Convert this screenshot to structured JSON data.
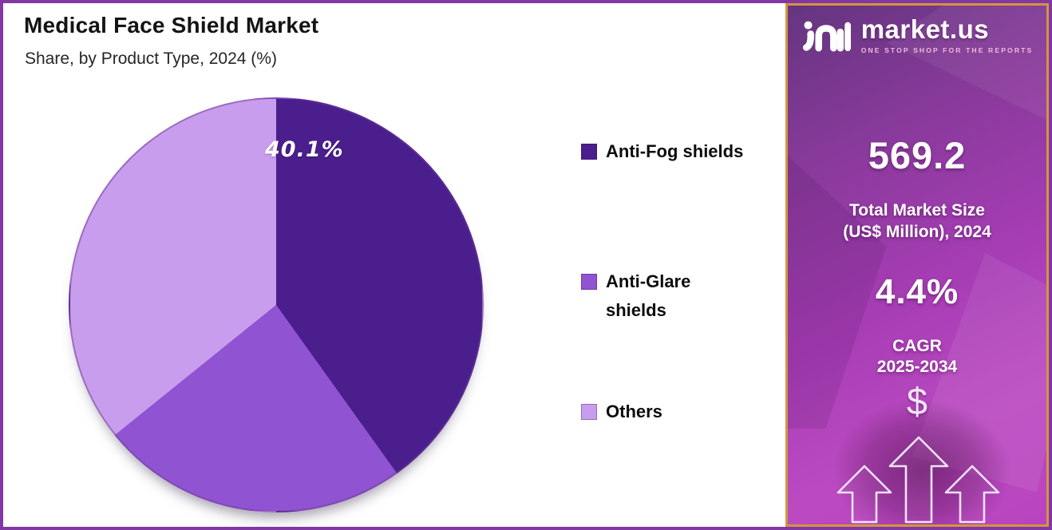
{
  "chart_data": {
    "type": "pie",
    "title": "Medical Face Shield Market",
    "subtitle": "Share, by Product Type, 2024 (%)",
    "labels": [
      "Anti-Fog shields",
      "Anti-Glare shields",
      "Others"
    ],
    "values": [
      40.1,
      24.1,
      35.8
    ],
    "displayed_labels": [
      "40.1%",
      "",
      ""
    ],
    "slice_label": "40.1%",
    "colors": [
      "#4a1e8c",
      "#9053d2",
      "#c99ded"
    ],
    "start_angle_deg": 0,
    "direction": "clockwise",
    "legend_position": "right",
    "legend_items": [
      {
        "lines": [
          "Anti-Fog shields"
        ]
      },
      {
        "lines": [
          "Anti-Glare",
          "shields"
        ]
      },
      {
        "lines": [
          "Others"
        ]
      }
    ]
  },
  "sidebar": {
    "brand": "market.us",
    "tagline": "ONE STOP SHOP FOR THE REPORTS",
    "market_size": {
      "value": "569.2",
      "label_line1": "Total Market Size",
      "label_line2": "(US$ Million), 2024"
    },
    "cagr": {
      "value": "4.4%",
      "label_line1": "CAGR",
      "label_line2": "2025-2034"
    },
    "dollar_icon": "$",
    "accent_border_color": "#d4953e",
    "gradient_top_color": "#64357f",
    "gradient_bottom_color": "#bb4ac1"
  },
  "frame": {
    "border_color": "#8238a4",
    "background_color": "#ffffff"
  }
}
